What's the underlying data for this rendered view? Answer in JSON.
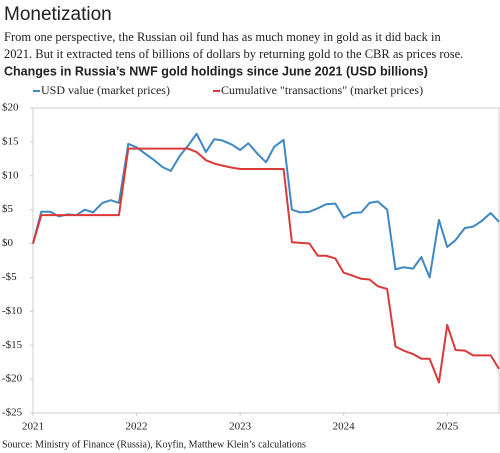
{
  "chart_data": {
    "type": "line",
    "title": "Monetization",
    "subtitle": [
      "From one perspective, the Russian oil fund has as much money in gold as it did back in",
      "2021. But it extracted tens of billions of dollars by returning gold to the CBR as prices rose."
    ],
    "chart_title": "Changes in Russia’s NWF gold holdings since June 2021 (USD billions)",
    "source": "Source: Ministry of Finance (Russia), Koyfin, Matthew Klein’s calculations",
    "x": [
      2021,
      2021.08,
      2021.17,
      2021.25,
      2021.33,
      2021.42,
      2021.5,
      2021.58,
      2021.67,
      2021.75,
      2021.83,
      2021.92,
      2022,
      2022.08,
      2022.17,
      2022.25,
      2022.33,
      2022.42,
      2022.5,
      2022.58,
      2022.67,
      2022.75,
      2022.83,
      2022.92,
      2023,
      2023.08,
      2023.17,
      2023.25,
      2023.33,
      2023.42,
      2023.5,
      2023.58,
      2023.67,
      2023.75,
      2023.83,
      2023.92,
      2024,
      2024.08,
      2024.17,
      2024.25,
      2024.33,
      2024.42,
      2024.5,
      2024.58,
      2024.67,
      2024.75,
      2024.83,
      2024.92,
      2025,
      2025.08,
      2025.17,
      2025.25,
      2025.33,
      2025.42,
      2025.5
    ],
    "series": [
      {
        "name": "USD value (market prices)",
        "color": "#3f88c5",
        "values": [
          0,
          4.7,
          4.7,
          4.0,
          4.3,
          4.2,
          5.0,
          4.6,
          6.0,
          6.4,
          6.0,
          14.7,
          14.2,
          13.3,
          12.3,
          11.3,
          10.7,
          13.0,
          14.5,
          16.2,
          13.5,
          15.4,
          15.2,
          14.6,
          13.8,
          14.8,
          13.2,
          12.0,
          14.3,
          15.3,
          5.0,
          4.6,
          4.7,
          5.2,
          5.8,
          5.9,
          3.8,
          4.5,
          4.6,
          6.0,
          6.2,
          5.0,
          -3.8,
          -3.5,
          -3.7,
          -2.0,
          -5.0,
          3.5,
          -0.5,
          0.5,
          2.3,
          2.5,
          3.3,
          4.5,
          3.2
        ]
      },
      {
        "name": "Cumulative \"transactions\" (market prices)",
        "color": "#d93a3a",
        "values": [
          0,
          4.2,
          4.2,
          4.2,
          4.2,
          4.2,
          4.2,
          4.2,
          4.2,
          4.2,
          4.2,
          14.0,
          14.0,
          14.0,
          14.0,
          14.0,
          14.0,
          14.0,
          14.0,
          13.5,
          12.3,
          11.8,
          11.5,
          11.2,
          11.0,
          11.0,
          11.0,
          11.0,
          11.0,
          11.0,
          0.2,
          0.1,
          0,
          -1.8,
          -1.8,
          -2.2,
          -4.3,
          -4.7,
          -5.2,
          -5.3,
          -6.3,
          -6.7,
          -15.2,
          -15.8,
          -16.3,
          -17.0,
          -17.0,
          -20.5,
          -12.0,
          -15.7,
          -15.8,
          -16.5,
          -16.5,
          -16.5,
          -18.5
        ]
      }
    ],
    "xlim": [
      2021,
      2025.5
    ],
    "xticks": [
      2021,
      2022,
      2023,
      2024,
      2025
    ],
    "ylim": [
      -25,
      20
    ],
    "yticks": [
      {
        "value": 20,
        "label": "$20"
      },
      {
        "value": 15,
        "label": "$15"
      },
      {
        "value": 10,
        "label": "$10"
      },
      {
        "value": 5,
        "label": "$5"
      },
      {
        "value": 0,
        "label": "$0"
      },
      {
        "value": -5,
        "label": "-$5"
      },
      {
        "value": -10,
        "label": "-$10"
      },
      {
        "value": -15,
        "label": "-$15"
      },
      {
        "value": -20,
        "label": "-$20"
      },
      {
        "value": -25,
        "label": "-$25"
      }
    ]
  }
}
